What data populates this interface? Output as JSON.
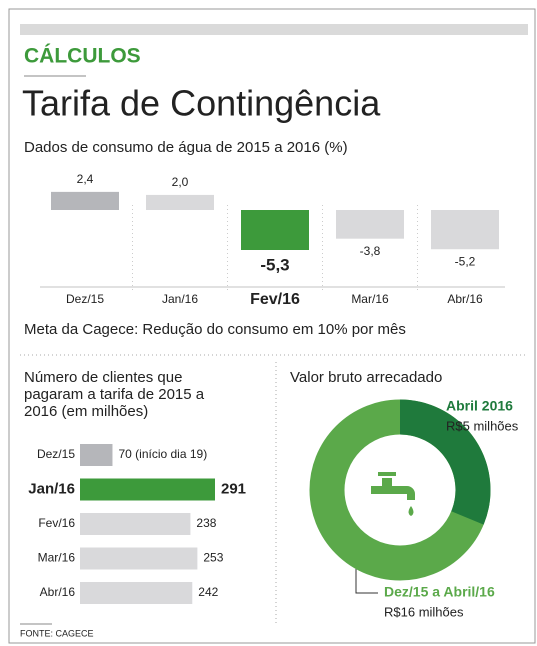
{
  "header": {
    "section": "CÁLCULOS",
    "title": "Tarifa de Contingência"
  },
  "chart_data": [
    {
      "type": "bar",
      "title": "Dados de consumo de água de 2015 a 2016 (%)",
      "categories": [
        "Dez/15",
        "Jan/16",
        "Fev/16",
        "Mar/16",
        "Abr/16"
      ],
      "values": [
        2.4,
        2.0,
        -5.3,
        -3.8,
        -5.2
      ],
      "value_labels": [
        "2,4",
        "2,0",
        "-5,3",
        "-3,8",
        "-5,2"
      ],
      "colors": [
        "#b5b6ba",
        "#d9d9db",
        "#3d9a3b",
        "#d9d9db",
        "#d9d9db"
      ],
      "accent_color": "#3d9a3b",
      "note": "Meta da Cagece: Redução do consumo em 10% por mês"
    },
    {
      "type": "hbar",
      "title": "Número de clientes que pagaram a tarifa de 2015 a 2016 (em milhões)",
      "categories": [
        "Dez/15",
        "Jan/16",
        "Fev/16",
        "Mar/16",
        "Abr/16"
      ],
      "values": [
        70,
        291,
        238,
        253,
        242
      ],
      "value_labels": [
        "70 (início dia 19)",
        "291",
        "238",
        "253",
        "242"
      ],
      "colors": [
        "#b5b6ba",
        "#3d9a3b",
        "#d9d9db",
        "#d9d9db",
        "#d9d9db"
      ],
      "accent_color": "#3d9a3b"
    },
    {
      "type": "donut",
      "title": "Valor bruto arrecadado",
      "categories": [
        "Abril 2016",
        "Dez/15 a Abril/16"
      ],
      "values": [
        5,
        16
      ],
      "value_labels": [
        "R$5 milhões",
        "R$16 milhões"
      ],
      "colors": [
        "#1f7a3c",
        "#5ba94a"
      ]
    }
  ],
  "footer": {
    "source": "FONTE: CAGECE"
  }
}
